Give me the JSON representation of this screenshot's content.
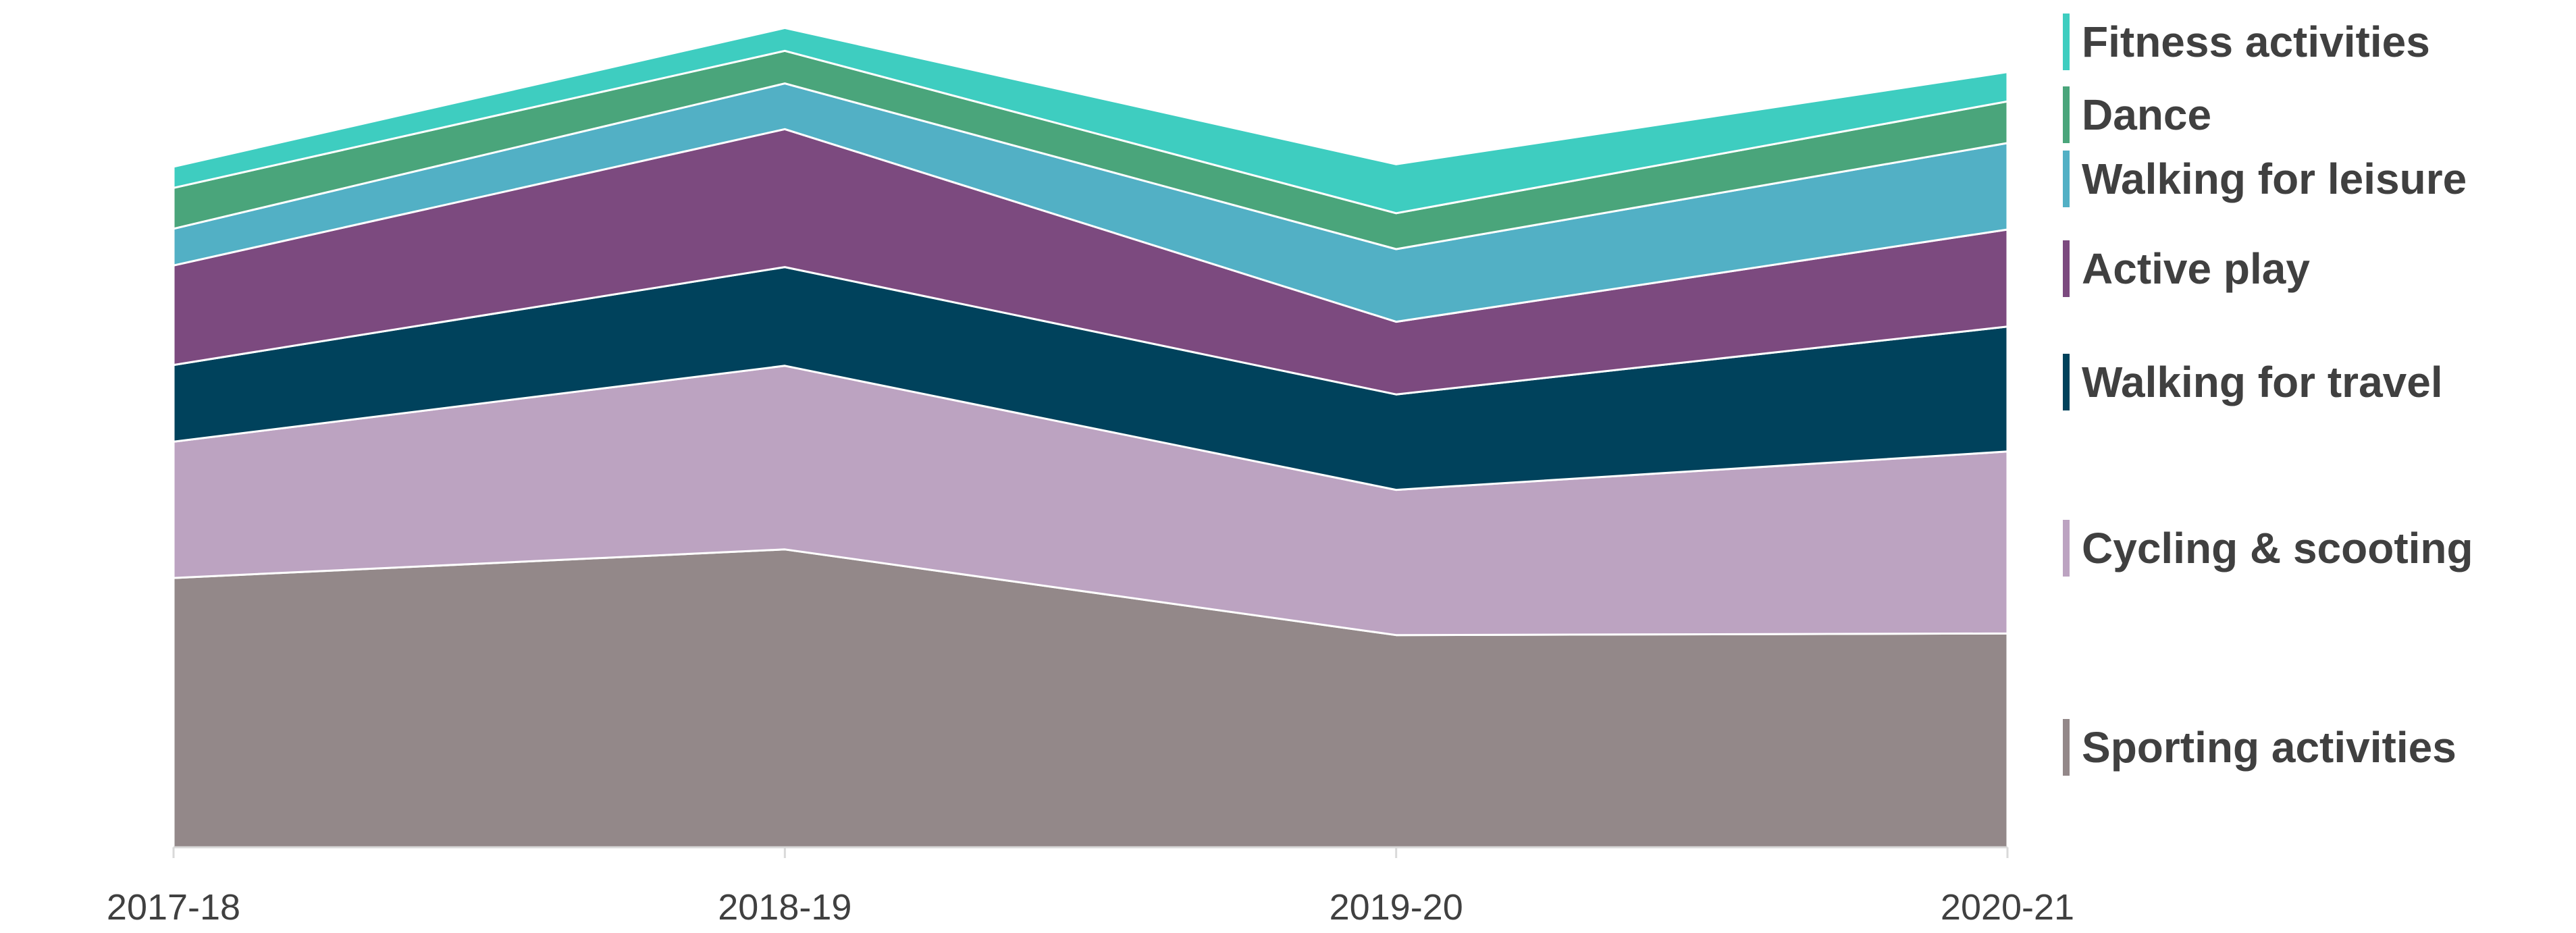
{
  "chart_data": {
    "type": "area",
    "stacked": true,
    "title": "",
    "xlabel": "",
    "ylabel": "",
    "ylim": [
      0,
      103
    ],
    "y_axis_visible": false,
    "grid": false,
    "legend_position": "right",
    "categories": [
      "2017-18",
      "2018-19",
      "2019-20",
      "2020-21"
    ],
    "series": [
      {
        "name": "Sporting activities",
        "color": "#938889",
        "values": [
          33.0,
          36.5,
          26.0,
          26.2
        ]
      },
      {
        "name": "Cycling & scooting",
        "color": "#BCA3C1",
        "values": [
          16.7,
          22.5,
          17.8,
          22.3
        ]
      },
      {
        "name": "Walking for travel",
        "color": "#00425C",
        "values": [
          9.4,
          12.1,
          11.7,
          15.3
        ]
      },
      {
        "name": "Active play",
        "color": "#7C4A7F",
        "values": [
          12.2,
          16.9,
          8.9,
          11.9
        ]
      },
      {
        "name": "Walking for leisure",
        "color": "#52B0C5",
        "values": [
          4.5,
          5.6,
          8.9,
          10.6
        ]
      },
      {
        "name": "Dance",
        "color": "#4AA57B",
        "values": [
          5.0,
          4.0,
          4.4,
          5.1
        ]
      },
      {
        "name": "Fitness activities",
        "color": "#3ECDC0",
        "values": [
          2.6,
          2.8,
          6.0,
          3.6
        ]
      }
    ]
  }
}
